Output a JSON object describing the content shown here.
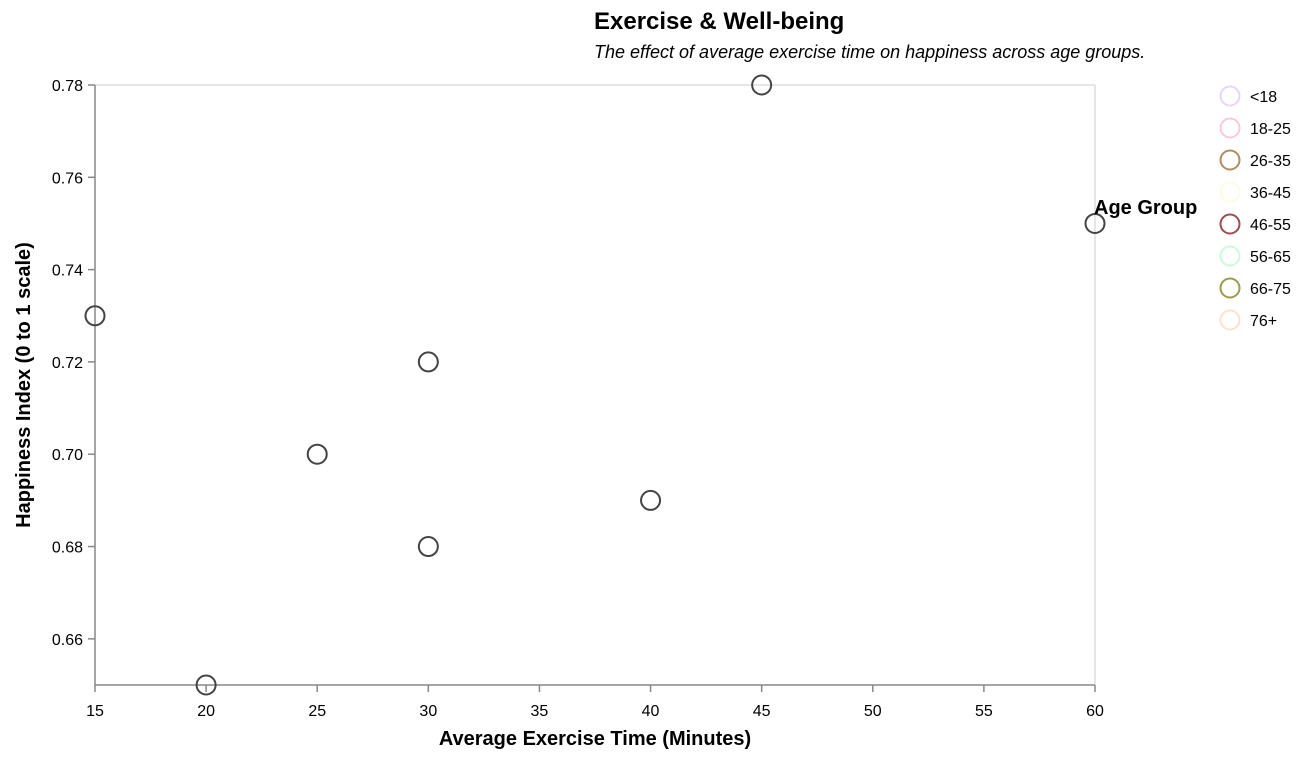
{
  "chart_data": {
    "type": "scatter",
    "title": "Exercise & Well-being",
    "subtitle": "The effect of average exercise time on happiness across age groups.",
    "xlabel": "Average Exercise Time (Minutes)",
    "ylabel": "Happiness Index (0 to 1 scale)",
    "xlim": [
      15,
      60
    ],
    "ylim": [
      0.65,
      0.78
    ],
    "x_ticks": [
      15,
      20,
      25,
      30,
      35,
      40,
      45,
      50,
      55,
      60
    ],
    "x_tick_labels": [
      "15",
      "20",
      "25",
      "30",
      "35",
      "40",
      "45",
      "50",
      "55",
      "60"
    ],
    "y_ticks": [
      0.66,
      0.68,
      0.7,
      0.72,
      0.74,
      0.76,
      0.78
    ],
    "y_tick_labels": [
      "0.66",
      "0.68",
      "0.70",
      "0.72",
      "0.74",
      "0.76",
      "0.78"
    ],
    "grid": false,
    "point_color": "#444444",
    "points": [
      {
        "x": 15,
        "y": 0.73
      },
      {
        "x": 20,
        "y": 0.65
      },
      {
        "x": 25,
        "y": 0.7
      },
      {
        "x": 30,
        "y": 0.72
      },
      {
        "x": 30,
        "y": 0.68
      },
      {
        "x": 40,
        "y": 0.69
      },
      {
        "x": 45,
        "y": 0.78
      },
      {
        "x": 60,
        "y": 0.75
      }
    ],
    "legend": {
      "title": "Age Group",
      "placement": "right",
      "entries": [
        {
          "label": "<18",
          "color": "#ebd5f7"
        },
        {
          "label": "18-25",
          "color": "#f9c9d6"
        },
        {
          "label": "26-35",
          "color": "#b18b62"
        },
        {
          "label": "36-45",
          "color": "#fdfbe4"
        },
        {
          "label": "46-55",
          "color": "#9b4d52"
        },
        {
          "label": "56-65",
          "color": "#c9fbdc"
        },
        {
          "label": "66-75",
          "color": "#9d9b4b"
        },
        {
          "label": "76+",
          "color": "#fbe3cb"
        }
      ]
    }
  }
}
